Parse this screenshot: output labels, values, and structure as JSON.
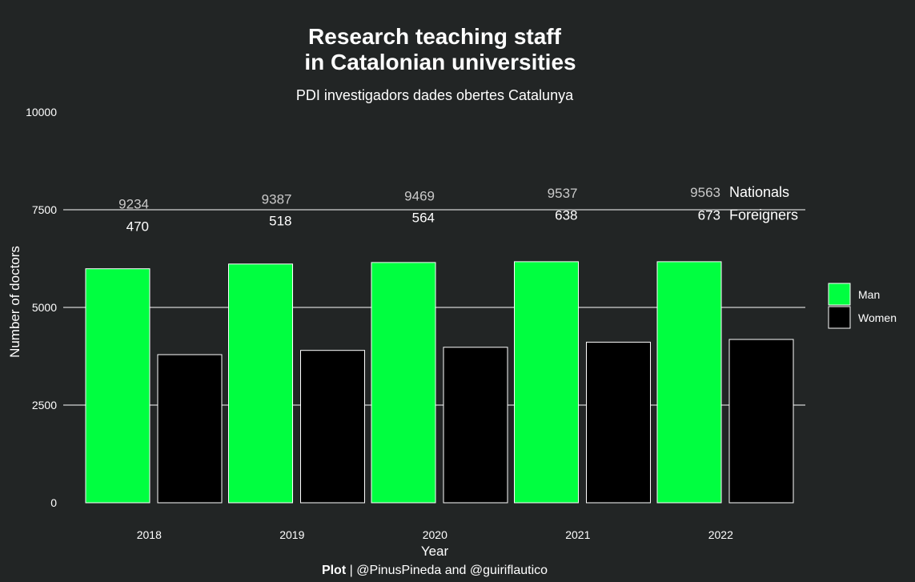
{
  "chart_data": {
    "type": "bar",
    "title_line1": "Research teaching staff",
    "title_line2": "in Catalonian universities",
    "subtitle": "PDI investigadors dades obertes Catalunya",
    "xlabel": "Year",
    "ylabel": "Number of doctors",
    "categories": [
      "2018",
      "2019",
      "2020",
      "2021",
      "2022"
    ],
    "ylim": [
      0,
      10000
    ],
    "yticks": [
      0,
      2500,
      5000,
      7500,
      10000
    ],
    "ytick_labels": [
      "0",
      "2500",
      "5000",
      "7500",
      "10000"
    ],
    "grid": "major y only",
    "series": [
      {
        "name": "Man",
        "color": "#00ff40",
        "values": [
          5990,
          6110,
          6150,
          6170,
          6170
        ]
      },
      {
        "name": "Women",
        "color": "#000000",
        "values": [
          3790,
          3900,
          3980,
          4110,
          4180
        ]
      }
    ],
    "annotations": {
      "nationals_label": "Nationals",
      "foreigners_label": "Foreigners",
      "nationals": [
        "9234",
        "9387",
        "9469",
        "9537",
        "9563"
      ],
      "foreigners": [
        "470",
        "518",
        "564",
        "638",
        "673"
      ],
      "nationals_y": [
        7650,
        7780,
        7860,
        7930,
        7950
      ],
      "foreigners_y": [
        7080,
        7220,
        7310,
        7370,
        7370
      ]
    },
    "legend": {
      "position": "right",
      "entries": [
        "Man",
        "Women"
      ]
    }
  },
  "caption": {
    "bold": "Plot",
    "rest": " | @PinusPineda and @guiriflautico"
  },
  "colors": {
    "background": "#222525",
    "gridline": "#ffffff",
    "bar_outline": "#ffffff"
  }
}
